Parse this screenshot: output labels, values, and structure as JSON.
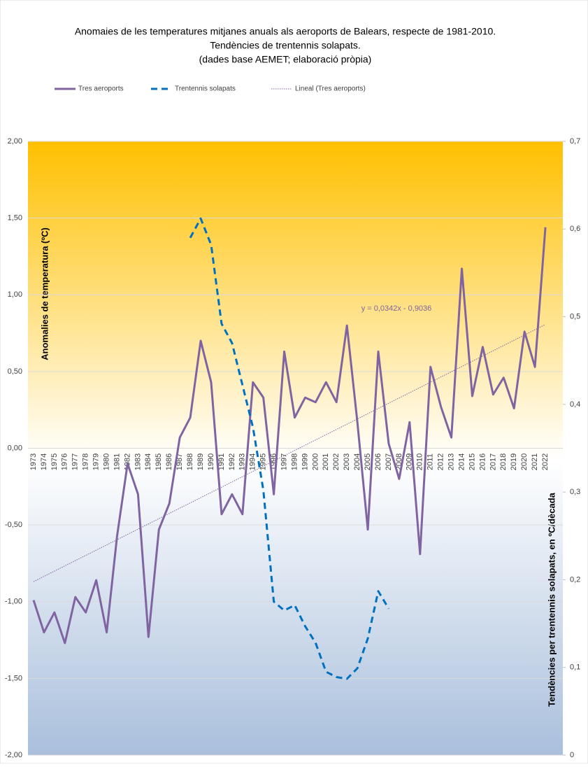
{
  "chart_data": {
    "type": "line",
    "title": [
      "Anomaies de les temperatures mitjanes anuals als aeroports de Balears, respecte de 1981-2010.",
      "Tendències de trentennis solapats.",
      "(dades base AEMET; elaboració pròpia)"
    ],
    "ylabel": "Anomalies de temperatura (ºC)",
    "y2label": "Tendències per trentennis solapats, en ºC/dècada",
    "annotation": "y = 0,0342x - 0,9036",
    "categories": [
      "1973",
      "1974",
      "1975",
      "1976",
      "1977",
      "1978",
      "1979",
      "1980",
      "1981",
      "1982",
      "1983",
      "1984",
      "1985",
      "1986",
      "1987",
      "1988",
      "1989",
      "1990",
      "1991",
      "1992",
      "1993",
      "1994",
      "1995",
      "1996",
      "1997",
      "1998",
      "1999",
      "2000",
      "2001",
      "2002",
      "2003",
      "2004",
      "2005",
      "2006",
      "2007",
      "2008",
      "2009",
      "2010",
      "2011",
      "2012",
      "2013",
      "2014",
      "2015",
      "2016",
      "2017",
      "2018",
      "2019",
      "2020",
      "2021",
      "2022"
    ],
    "series": [
      {
        "name": "Tres aeroports",
        "color": "#8064a2",
        "style": "solid",
        "values": [
          -0.99,
          -1.2,
          -1.07,
          -1.27,
          -0.97,
          -1.07,
          -0.86,
          -1.2,
          -0.57,
          -0.1,
          -0.3,
          -1.23,
          -0.53,
          -0.36,
          0.07,
          0.2,
          0.7,
          0.43,
          -0.43,
          -0.3,
          -0.43,
          0.43,
          0.33,
          -0.3,
          0.63,
          0.2,
          0.33,
          0.3,
          0.43,
          0.3,
          0.8,
          0.17,
          -0.53,
          0.63,
          0.03,
          -0.2,
          0.17,
          -0.69,
          0.53,
          0.27,
          0.07,
          1.17,
          0.34,
          0.66,
          0.35,
          0.46,
          0.26,
          0.76,
          0.53,
          1.44
        ]
      },
      {
        "name": "Trentennis solapats",
        "color": "#0070c0",
        "style": "dashed",
        "axis": "y2",
        "values": [
          null,
          null,
          null,
          null,
          null,
          null,
          null,
          null,
          null,
          null,
          null,
          null,
          null,
          null,
          null,
          0.59,
          0.612,
          0.582,
          0.492,
          0.47,
          0.422,
          0.374,
          0.302,
          0.175,
          0.165,
          0.171,
          0.147,
          0.128,
          0.095,
          0.089,
          0.087,
          0.099,
          0.133,
          0.187,
          0.167,
          null,
          null,
          null,
          null,
          null,
          null,
          null,
          null,
          null,
          null,
          null,
          null,
          null,
          null,
          null
        ]
      },
      {
        "name": "Lineal  (Tres aeroports)",
        "color": "#8064a2",
        "style": "dotted",
        "values": [
          -0.8694,
          -0.8352,
          -0.801,
          -0.7668,
          -0.7326,
          -0.6984,
          -0.6642,
          -0.63,
          -0.5958,
          -0.5616,
          -0.5274,
          -0.4932,
          -0.459,
          -0.4248,
          -0.3906,
          -0.3564,
          -0.3222,
          -0.288,
          -0.2538,
          -0.2196,
          -0.1854,
          -0.1512,
          -0.117,
          -0.0828,
          -0.0486,
          -0.0144,
          0.0198,
          0.054,
          0.0882,
          0.1224,
          0.1566,
          0.1908,
          0.225,
          0.2592,
          0.2934,
          0.3276,
          0.3618,
          0.396,
          0.4302,
          0.4644,
          0.4986,
          0.5328,
          0.567,
          0.6012,
          0.6354,
          0.6696,
          0.7038,
          0.738,
          0.7722,
          0.8064
        ]
      }
    ],
    "ylim": [
      -2,
      2
    ],
    "yticks": [
      {
        "value": -2,
        "label": "-2,00"
      },
      {
        "value": -1.5,
        "label": "-1,50"
      },
      {
        "value": -1,
        "label": "-1,00"
      },
      {
        "value": -0.5,
        "label": "-0,50"
      },
      {
        "value": 0,
        "label": "0,00"
      },
      {
        "value": 0.5,
        "label": "0,50"
      },
      {
        "value": 1,
        "label": "1,00"
      },
      {
        "value": 1.5,
        "label": "1,50"
      },
      {
        "value": 2,
        "label": "2,00"
      }
    ],
    "y2lim": [
      0,
      0.7
    ],
    "y2ticks": [
      0,
      {
        "value": 0.1,
        "label": "0,1"
      },
      {
        "value": 0.2,
        "label": "0,2"
      },
      {
        "value": 0.3,
        "label": "0,3"
      },
      {
        "value": 0.4,
        "label": "0,4"
      },
      {
        "value": 0.5,
        "label": "0,5"
      },
      {
        "value": 0.6,
        "label": "0,6"
      },
      {
        "value": 0.7,
        "label": "0,7"
      }
    ],
    "grid": true,
    "legend": "top"
  }
}
